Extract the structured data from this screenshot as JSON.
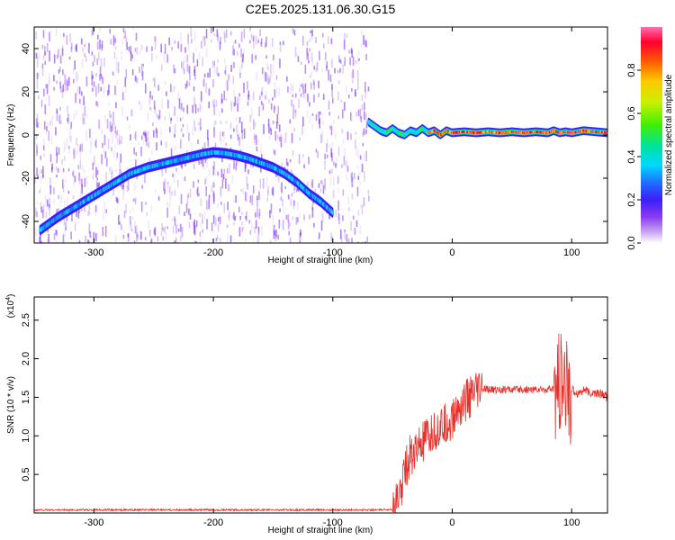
{
  "figure": {
    "title": "C2E5.2025.131.06.30.G15"
  },
  "chart_data": [
    {
      "type": "heatmap",
      "title": "C2E5.2025.131.06.30.G15",
      "xlabel": "Height of straight line (km)",
      "ylabel": "Frequency (Hz)",
      "xlim": [
        -350,
        130
      ],
      "ylim": [
        -50,
        50
      ],
      "x_ticks": [
        -300,
        -200,
        -100,
        0,
        100
      ],
      "y_ticks": [
        -40,
        -20,
        0,
        20,
        40
      ],
      "noise_region_x": [
        -350,
        -70
      ],
      "colorbar": {
        "label": "Normalized spectral amplitude",
        "range": [
          0,
          1
        ],
        "ticks": [
          0.0,
          0.2,
          0.4,
          0.6,
          0.8
        ],
        "colormap": [
          "#ffffff",
          "#c9a6f2",
          "#8a3cf0",
          "#3b1ff5",
          "#1e6fff",
          "#00d8ff",
          "#00e39a",
          "#43f000",
          "#c8f000",
          "#ffc800",
          "#ff5a00",
          "#ff0030",
          "#ff6fb0"
        ]
      },
      "ridge_left": {
        "x": [
          -345,
          -330,
          -315,
          -300,
          -285,
          -270,
          -255,
          -240,
          -225,
          -210,
          -200,
          -190,
          -180,
          -170,
          -160,
          -150,
          -140,
          -130,
          -120,
          -110,
          -100
        ],
        "y": [
          -44,
          -38,
          -33,
          -28,
          -23,
          -18,
          -15,
          -13,
          -11,
          -9,
          -8,
          -8.5,
          -9.5,
          -11,
          -13,
          -15,
          -18,
          -22,
          -27,
          -31,
          -36
        ]
      },
      "ridge_right": {
        "x": [
          -70,
          -65,
          -60,
          -55,
          -50,
          -45,
          -40,
          -35,
          -30,
          -25,
          -20,
          -15,
          -10,
          -5,
          0,
          10,
          20,
          30,
          40,
          50,
          60,
          70,
          80,
          85,
          90,
          95,
          100,
          110,
          120,
          130
        ],
        "y": [
          6,
          4,
          2,
          1,
          3,
          1,
          0,
          2,
          1,
          3,
          1,
          2,
          0,
          2,
          1,
          1.5,
          1,
          1.5,
          1,
          1.5,
          1,
          1.5,
          1,
          2,
          1,
          1.5,
          1,
          2,
          1.5,
          1
        ]
      }
    },
    {
      "type": "line",
      "xlabel": "Height of straight line (km)",
      "ylabel": "SNR (10 * v/v)",
      "y_multiplier_label": "(x10",
      "y_multiplier_exponent": "4",
      "xlim": [
        -350,
        130
      ],
      "ylim": [
        0,
        2.8
      ],
      "x_ticks": [
        -300,
        -200,
        -100,
        0,
        100
      ],
      "y_ticks": [
        0.5,
        1.0,
        1.5,
        2.0,
        2.5
      ],
      "line_color": "#e8302a",
      "series": [
        {
          "x": [
            -350,
            -300,
            -250,
            -200,
            -150,
            -100,
            -60,
            -50,
            -45,
            -40,
            -35,
            -30,
            -25,
            -20,
            -15,
            -10,
            -5,
            0,
            5,
            10,
            15,
            20,
            25,
            30,
            40,
            50,
            60,
            70,
            80,
            85,
            88,
            90,
            92,
            94,
            96,
            98,
            100,
            105,
            110,
            115,
            120,
            125,
            130
          ],
          "y": [
            0.04,
            0.04,
            0.04,
            0.04,
            0.04,
            0.04,
            0.04,
            0.05,
            0.15,
            0.55,
            0.75,
            0.8,
            0.9,
            0.95,
            1.05,
            1.1,
            1.15,
            1.2,
            1.35,
            1.45,
            1.5,
            1.55,
            1.6,
            1.6,
            1.6,
            1.6,
            1.6,
            1.6,
            1.6,
            1.6,
            1.5,
            1.7,
            1.6,
            1.4,
            1.8,
            1.5,
            1.6,
            1.55,
            1.6,
            1.55,
            1.55,
            1.55,
            1.5
          ]
        }
      ]
    }
  ]
}
